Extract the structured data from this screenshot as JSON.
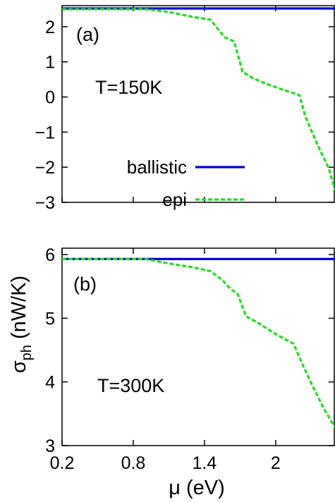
{
  "figure": {
    "shared_xlabel": "μ (eV)",
    "shared_ylabel_main": "σ",
    "shared_ylabel_sub": "ph",
    "shared_ylabel_unit": " (nW/K)"
  },
  "chart_data": [
    {
      "type": "line",
      "panel_label": "(a)",
      "annotation": "T=150K",
      "xlim": [
        0.2,
        2.5
      ],
      "ylim": [
        -3,
        2.6
      ],
      "xticks": [
        0.2,
        0.8,
        1.4,
        2
      ],
      "xtick_labels": [
        "",
        "",
        "",
        ""
      ],
      "yticks": [
        -3,
        -2,
        -1,
        0,
        1,
        2
      ],
      "ytick_labels": [
        "−3",
        "−2",
        "−1",
        "0",
        "1",
        "2"
      ],
      "legend": "center-left",
      "series": [
        {
          "name": "ballistic",
          "color": "#0000cc",
          "dash": "solid",
          "x": [
            0.2,
            2.5
          ],
          "y": [
            2.52,
            2.52
          ]
        },
        {
          "name": "epi",
          "color": "#22dd22",
          "dash": "dashed",
          "x": [
            0.2,
            0.9,
            1.1,
            1.3,
            1.45,
            1.57,
            1.65,
            1.72,
            1.8,
            1.9,
            2.05,
            2.2,
            2.25,
            2.35,
            2.45,
            2.5
          ],
          "y": [
            2.5,
            2.5,
            2.42,
            2.28,
            2.2,
            1.7,
            1.58,
            0.72,
            0.55,
            0.4,
            0.22,
            0.05,
            -0.55,
            -1.35,
            -2.05,
            -2.65
          ]
        }
      ]
    },
    {
      "type": "line",
      "panel_label": "(b)",
      "annotation": "T=300K",
      "xlim": [
        0.2,
        2.5
      ],
      "ylim": [
        3,
        6.1
      ],
      "xticks": [
        0.2,
        0.8,
        1.4,
        2
      ],
      "xtick_labels": [
        "0.2",
        "0.8",
        "1.4",
        "2"
      ],
      "yticks": [
        3,
        4,
        5,
        6
      ],
      "ytick_labels": [
        "3",
        "4",
        "5",
        "6"
      ],
      "series": [
        {
          "name": "ballistic",
          "color": "#0000cc",
          "dash": "solid",
          "x": [
            0.2,
            2.5
          ],
          "y": [
            5.93,
            5.93
          ]
        },
        {
          "name": "epi",
          "color": "#22dd22",
          "dash": "dashed",
          "x": [
            0.2,
            0.9,
            1.1,
            1.3,
            1.45,
            1.55,
            1.62,
            1.68,
            1.75,
            1.85,
            2.0,
            2.15,
            2.22,
            2.3,
            2.4,
            2.5
          ],
          "y": [
            5.93,
            5.93,
            5.86,
            5.8,
            5.74,
            5.6,
            5.46,
            5.38,
            5.03,
            4.93,
            4.75,
            4.6,
            4.3,
            3.98,
            3.6,
            3.28
          ]
        }
      ]
    }
  ]
}
